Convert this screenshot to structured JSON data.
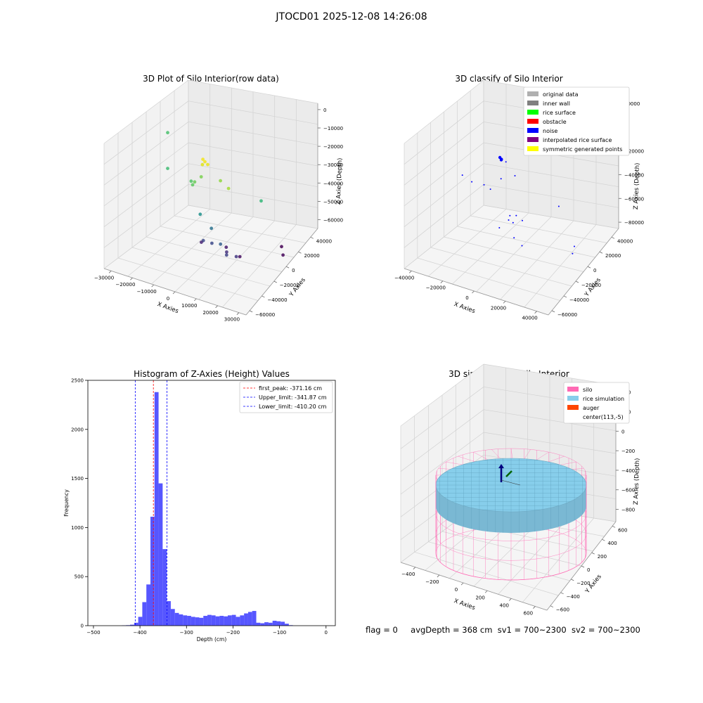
{
  "figure": {
    "suptitle": "JTOCD01 2025-12-08 14:26:08",
    "footer": {
      "flag": "flag = 0",
      "avgDepth": "avgDepth = 368 cm",
      "sv1": "sv1 = 700~2300",
      "sv2": "sv2 = 700~2300"
    }
  },
  "colors": {
    "original_data": "#b0b0b0",
    "inner_wall": "#808080",
    "rice_surface": "#00ff00",
    "obstacle": "#ff0000",
    "noise": "#0000ff",
    "interpolated": "#800080",
    "symmetric": "#ffff00",
    "silo": "#ff69b4",
    "rice_sim": "#87ceeb",
    "auger": "#ff4500",
    "hist_bar": "#4d4dff"
  },
  "chart_data": [
    {
      "type": "scatter",
      "title": "3D Plot of Silo Interior(row data)",
      "xlabel": "X Axies",
      "ylabel": "Y Axies",
      "zlabel": "Z Axies (Depth)",
      "xlim": [
        -35000,
        35000
      ],
      "ylim": [
        -60000,
        50000
      ],
      "zlim": [
        -65000,
        5000
      ],
      "xticks": [
        "−30000",
        "−20000",
        "−10000",
        "0",
        "10000",
        "20000",
        "30000"
      ],
      "yticks": [
        "−60000",
        "−40000",
        "−20000",
        "0",
        "20000",
        "40000"
      ],
      "zticks": [
        "0",
        "−10000",
        "−20000",
        "−30000",
        "−40000",
        "−50000",
        "−60000"
      ],
      "points": [
        {
          "x": 500,
          "y": 15000,
          "z": -2000,
          "c": "#f2e51d"
        },
        {
          "x": 1500,
          "y": 15000,
          "z": -3000,
          "c": "#f2e51d"
        },
        {
          "x": 2500,
          "y": 14000,
          "z": -4500,
          "c": "#e8e419"
        },
        {
          "x": -500,
          "y": 13000,
          "z": -6000,
          "c": "#dde318"
        },
        {
          "x": 6500,
          "y": 8000,
          "z": -14000,
          "c": "#90d743"
        },
        {
          "x": 12000,
          "y": 12000,
          "z": -15000,
          "c": "#a5db36"
        },
        {
          "x": -6000,
          "y": 0,
          "z": -19000,
          "c": "#7ad151"
        },
        {
          "x": -10000,
          "y": -2000,
          "z": -24000,
          "c": "#6ccd5a"
        },
        {
          "x": -11000,
          "y": -2000,
          "z": -26000,
          "c": "#5ec962"
        },
        {
          "x": -14000,
          "y": -8000,
          "z": -27000,
          "c": "#52c569"
        },
        {
          "x": 33000,
          "y": 25000,
          "z": -10000,
          "c": "#35b779"
        },
        {
          "x": -32000,
          "y": -25000,
          "z": -12000,
          "c": "#4ac16d"
        },
        {
          "x": -32000,
          "y": -25000,
          "z": -32000,
          "c": "#3fbc73"
        },
        {
          "x": -8000,
          "y": -4000,
          "z": -42000,
          "c": "#21918c"
        },
        {
          "x": -1000,
          "y": 0,
          "z": -46000,
          "c": "#2c728e"
        },
        {
          "x": 2000,
          "y": -4000,
          "z": -55000,
          "c": "#355f8d"
        },
        {
          "x": -3000,
          "y": -6000,
          "z": -57000,
          "c": "#3e4a89"
        },
        {
          "x": -8000,
          "y": -8000,
          "z": -58000,
          "c": "#3e4a89"
        },
        {
          "x": 5000,
          "y": -4000,
          "z": -60000,
          "c": "#414487"
        },
        {
          "x": 9000,
          "y": -6000,
          "z": -60000,
          "c": "#443a83"
        },
        {
          "x": 2000,
          "y": -12000,
          "z": -62000,
          "c": "#46327e"
        },
        {
          "x": -12000,
          "y": -16000,
          "z": -63000,
          "c": "#482475"
        },
        {
          "x": -2000,
          "y": -22000,
          "z": -64000,
          "c": "#481a6c"
        },
        {
          "x": 7000,
          "y": -16000,
          "z": -64000,
          "c": "#471063"
        },
        {
          "x": 26000,
          "y": -22000,
          "z": -58000,
          "c": "#46085c"
        },
        {
          "x": 20000,
          "y": -36000,
          "z": -60000,
          "c": "#440154"
        }
      ]
    },
    {
      "type": "scatter",
      "title": "3D classify of Silo Interior",
      "xlabel": "X Axies",
      "ylabel": "Y Axies",
      "zlabel": "Z Axies (Depth)",
      "xlim": [
        -45000,
        50000
      ],
      "ylim": [
        -60000,
        50000
      ],
      "zlim": [
        -80000,
        10000
      ],
      "xticks": [
        "−40000",
        "−20000",
        "0",
        "20000",
        "40000"
      ],
      "yticks": [
        "−60000",
        "−40000",
        "−20000",
        "0",
        "20000",
        "40000"
      ],
      "zticks": [
        "20000",
        "0",
        "−20000",
        "−40000",
        "−60000",
        "−80000"
      ],
      "legend": [
        "original data",
        "inner wall",
        "rice surface",
        "obstacle",
        "noise",
        "interpolated rice surface",
        "symmetric generated points"
      ],
      "legend_colors": [
        "#b0b0b0",
        "#808080",
        "#00ff00",
        "#ff0000",
        "#0000ff",
        "#800080",
        "#ffff00"
      ],
      "legend_loc": "upper right",
      "points": [
        {
          "x": 0,
          "y": 12000,
          "z": 0,
          "c": "#0000ff",
          "s": 2.2
        },
        {
          "x": 1000,
          "y": 12000,
          "z": -1000,
          "c": "#0000ff",
          "s": 2.2
        },
        {
          "x": 400,
          "y": 11000,
          "z": -2000,
          "c": "#0000ff",
          "s": 2.2
        },
        {
          "x": 3000,
          "y": 10000,
          "z": -3000,
          "c": "#0000ff",
          "s": 1
        },
        {
          "x": 8000,
          "y": 8000,
          "z": -12000,
          "c": "#0000ff",
          "s": 1
        },
        {
          "x": 45000,
          "y": 25000,
          "z": -14000,
          "c": "#0000ff",
          "s": 1
        },
        {
          "x": -5000,
          "y": 0,
          "z": -22000,
          "c": "#0000ff",
          "s": 1
        },
        {
          "x": -12000,
          "y": 0,
          "z": -32000,
          "c": "#0000ff",
          "s": 1
        },
        {
          "x": -40000,
          "y": -20000,
          "z": -40000,
          "c": "#0000ff",
          "s": 1
        },
        {
          "x": -20000,
          "y": -8000,
          "z": -35000,
          "c": "#0000ff",
          "s": 1
        },
        {
          "x": -30000,
          "y": -12000,
          "z": -38000,
          "c": "#0000ff",
          "s": 1
        },
        {
          "x": 5000,
          "y": 0,
          "z": -45000,
          "c": "#0000ff",
          "s": 1
        },
        {
          "x": 10000,
          "y": 2000,
          "z": -46000,
          "c": "#0000ff",
          "s": 1
        },
        {
          "x": -2000,
          "y": -6000,
          "z": -50000,
          "c": "#0000ff",
          "s": 1
        },
        {
          "x": 0,
          "y": 0,
          "z": -50000,
          "c": "#0000ff",
          "s": 1
        },
        {
          "x": 2000,
          "y": -2000,
          "z": -52000,
          "c": "#0000ff",
          "s": 1
        },
        {
          "x": -8000,
          "y": -4000,
          "z": -60000,
          "c": "#0000ff",
          "s": 1
        },
        {
          "x": 35000,
          "y": -15000,
          "z": -68000,
          "c": "#0000ff",
          "s": 1
        },
        {
          "x": 5000,
          "y": -8000,
          "z": -70000,
          "c": "#0000ff",
          "s": 1
        },
        {
          "x": -5000,
          "y": -18000,
          "z": -72000,
          "c": "#0000ff",
          "s": 1
        },
        {
          "x": 30000,
          "y": -28000,
          "z": -70000,
          "c": "#0000ff",
          "s": 1
        }
      ]
    },
    {
      "type": "bar",
      "title": "Histogram of Z-Axies (Height) Values",
      "xlabel": "Depth (cm)",
      "ylabel": "Frequency",
      "xlim": [
        -512,
        20
      ],
      "ylim": [
        0,
        2500
      ],
      "xticks": [
        -500,
        -400,
        -300,
        -200,
        -100,
        0
      ],
      "xtick_labels": [
        "−500",
        "−400",
        "−300",
        "−200",
        "−100",
        "0"
      ],
      "yticks": [
        0,
        500,
        1000,
        1500,
        2000,
        2500
      ],
      "bin_start": -500,
      "bin_width": 8.75,
      "counts": [
        0,
        0,
        0,
        0,
        0,
        0,
        0,
        3,
        5,
        10,
        30,
        90,
        240,
        420,
        1110,
        2380,
        1450,
        780,
        250,
        170,
        130,
        115,
        105,
        100,
        90,
        85,
        80,
        100,
        110,
        105,
        95,
        100,
        95,
        105,
        110,
        90,
        105,
        125,
        140,
        150,
        30,
        25,
        35,
        30,
        50,
        45,
        40,
        20,
        5
      ],
      "lines": [
        {
          "label": "first_peak: -371.16 cm",
          "x": -371.16,
          "color": "#ff0000"
        },
        {
          "label": "Upper_limit: -341.87 cm",
          "x": -341.87,
          "color": "#0000ff"
        },
        {
          "label": "Lower_limit: -410.20 cm",
          "x": -410.2,
          "color": "#0000ff"
        }
      ],
      "legend_loc": "upper right"
    },
    {
      "type": "surface",
      "title": "3D simulation of Silo Interior",
      "xlabel": "X Axies",
      "ylabel": "Y Axies",
      "zlabel": "Z Axies (Depth)",
      "xlim": [
        -500,
        700
      ],
      "ylim": [
        -650,
        650
      ],
      "zlim": [
        -950,
        500
      ],
      "xticks": [
        "−400",
        "−200",
        "0",
        "200",
        "400",
        "600"
      ],
      "yticks": [
        "−600",
        "−400",
        "−200",
        "0",
        "200",
        "400",
        "600"
      ],
      "zticks": [
        "400",
        "200",
        "0",
        "−200",
        "−400",
        "−600",
        "−800"
      ],
      "silo": {
        "radius": 600,
        "z_top": 100,
        "z_bottom": -900
      },
      "rice_depth": -368,
      "legend": [
        "silo",
        "rice simulation",
        "auger",
        "center(113,-5)"
      ],
      "legend_colors": [
        "#ff69b4",
        "#87ceeb",
        "#ff4500",
        ""
      ],
      "legend_loc": "upper right"
    }
  ]
}
